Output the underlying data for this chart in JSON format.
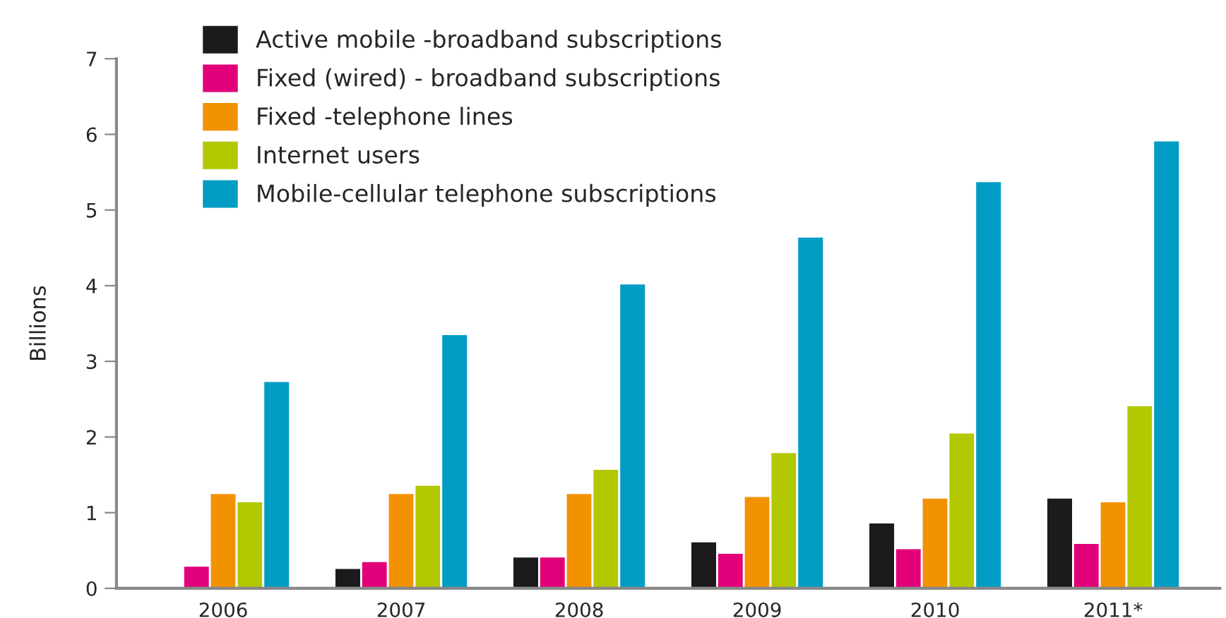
{
  "chart_data": {
    "type": "bar",
    "ylabel": "Billions",
    "categories": [
      "2006",
      "2007",
      "2008",
      "2009",
      "2010",
      "2011*"
    ],
    "series": [
      {
        "name": "Active mobile -broadband subscriptions",
        "color": "#1c1a1c",
        "values": [
          null,
          0.27,
          0.42,
          0.62,
          0.87,
          1.2
        ]
      },
      {
        "name": "Fixed (wired) - broadband subscriptions",
        "color": "#e2007a",
        "values": [
          0.3,
          0.36,
          0.42,
          0.47,
          0.53,
          0.6
        ]
      },
      {
        "name": "Fixed -telephone lines",
        "color": "#f39200",
        "values": [
          1.26,
          1.26,
          1.26,
          1.22,
          1.2,
          1.15
        ]
      },
      {
        "name": "Internet users",
        "color": "#b2c800",
        "values": [
          1.15,
          1.37,
          1.58,
          1.8,
          2.06,
          2.42
        ]
      },
      {
        "name": "Mobile-cellular telephone subscriptions",
        "color": "#009cc4",
        "values": [
          2.74,
          3.36,
          4.03,
          4.65,
          5.38,
          5.92
        ]
      }
    ],
    "ylim": [
      0,
      7
    ],
    "yticks": [
      0,
      1,
      2,
      3,
      4,
      5,
      6,
      7
    ],
    "grid": false,
    "legend": "top left"
  }
}
